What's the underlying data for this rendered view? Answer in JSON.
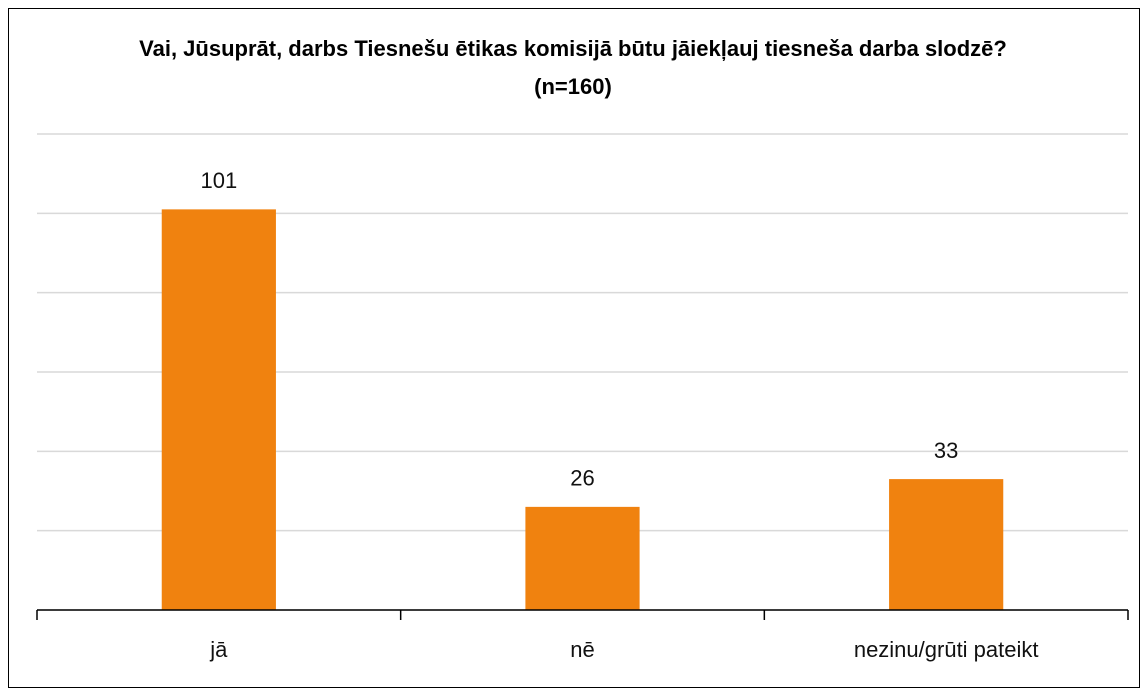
{
  "chart_data": {
    "type": "bar",
    "title": "Vai, Jūsuprāt, darbs Tiesnešu ētikas komisijā būtu jāiekļauj tiesneša darba slodzē? (n=160)",
    "categories": [
      "jā",
      "nē",
      "nezinu/grūti pateikt"
    ],
    "values": [
      101,
      26,
      33
    ],
    "color": "#f0820f",
    "ylim": [
      0,
      120
    ],
    "yticks": [
      0,
      20,
      40,
      60,
      80,
      100,
      120
    ],
    "grid": true
  }
}
